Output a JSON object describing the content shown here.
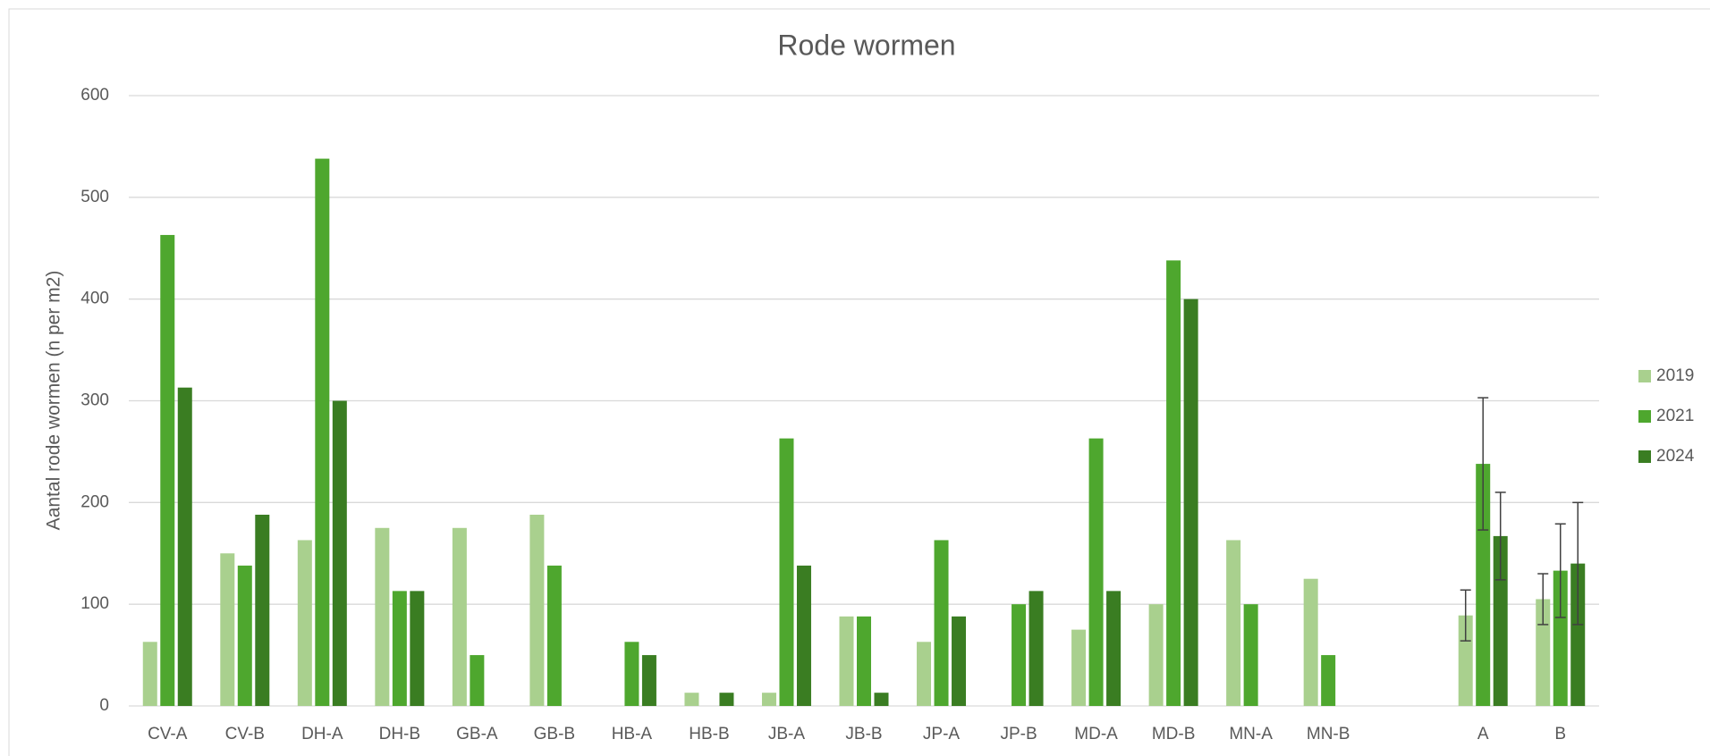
{
  "chart_data": {
    "type": "bar",
    "title": "Rode wormen",
    "y_label": "Aantal rode wormen (n per m2)",
    "categories": [
      "CV-A",
      "CV-B",
      "DH-A",
      "DH-B",
      "GB-A",
      "GB-B",
      "HB-A",
      "HB-B",
      "JB-A",
      "JB-B",
      "JP-A",
      "JP-B",
      "MD-A",
      "MD-B",
      "MN-A",
      "MN-B",
      null,
      "A",
      "B"
    ],
    "series": [
      {
        "name": "2019",
        "color": "#a9d08e",
        "values": [
          63,
          150,
          163,
          175,
          175,
          188,
          0,
          13,
          13,
          88,
          63,
          0,
          75,
          100,
          163,
          125,
          null,
          89,
          105
        ],
        "errors": [
          null,
          null,
          null,
          null,
          null,
          null,
          null,
          null,
          null,
          null,
          null,
          null,
          null,
          null,
          null,
          null,
          null,
          25,
          25
        ]
      },
      {
        "name": "2021",
        "color": "#4ea72e",
        "values": [
          463,
          138,
          538,
          113,
          50,
          138,
          63,
          0,
          263,
          88,
          163,
          100,
          263,
          438,
          100,
          50,
          null,
          238,
          133
        ],
        "errors": [
          null,
          null,
          null,
          null,
          null,
          null,
          null,
          null,
          null,
          null,
          null,
          null,
          null,
          null,
          null,
          null,
          null,
          65,
          46
        ]
      },
      {
        "name": "2024",
        "color": "#3a7d22",
        "values": [
          313,
          188,
          300,
          113,
          0,
          0,
          50,
          13,
          138,
          13,
          88,
          113,
          113,
          400,
          0,
          0,
          null,
          167,
          140
        ],
        "errors": [
          null,
          null,
          null,
          null,
          null,
          null,
          null,
          null,
          null,
          null,
          null,
          null,
          null,
          null,
          null,
          null,
          null,
          43,
          60
        ]
      }
    ],
    "ylim": [
      0,
      600
    ],
    "yticks": [
      0,
      100,
      200,
      300,
      400,
      500,
      600
    ],
    "grid": true,
    "legend": "right"
  }
}
